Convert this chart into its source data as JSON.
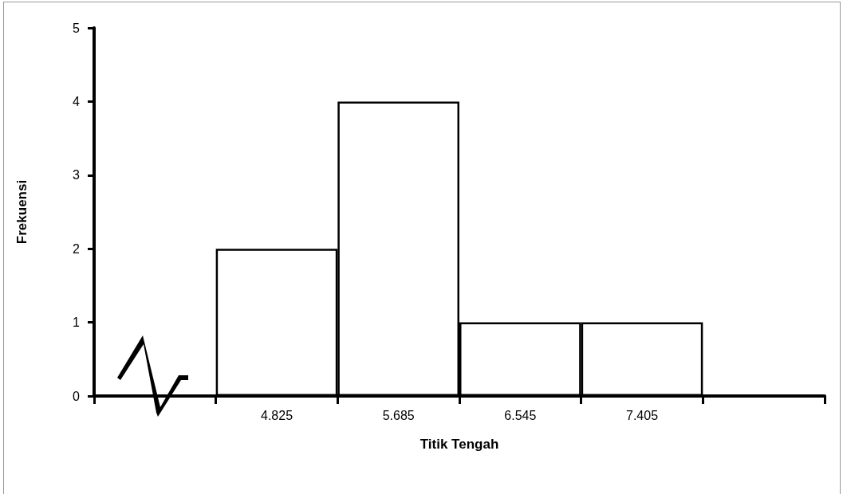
{
  "chart_data": {
    "type": "bar",
    "xlabel": "Titik Tengah",
    "ylabel": "Frekuensi",
    "categories": [
      null,
      "4.825",
      "5.685",
      "6.545",
      "7.405",
      null
    ],
    "values": [
      null,
      2,
      4,
      1,
      1,
      null
    ],
    "color": "#ffffff",
    "ylim": [
      0,
      5
    ],
    "yticks": [
      0,
      1,
      2,
      3,
      4,
      5
    ],
    "grid": false
  }
}
